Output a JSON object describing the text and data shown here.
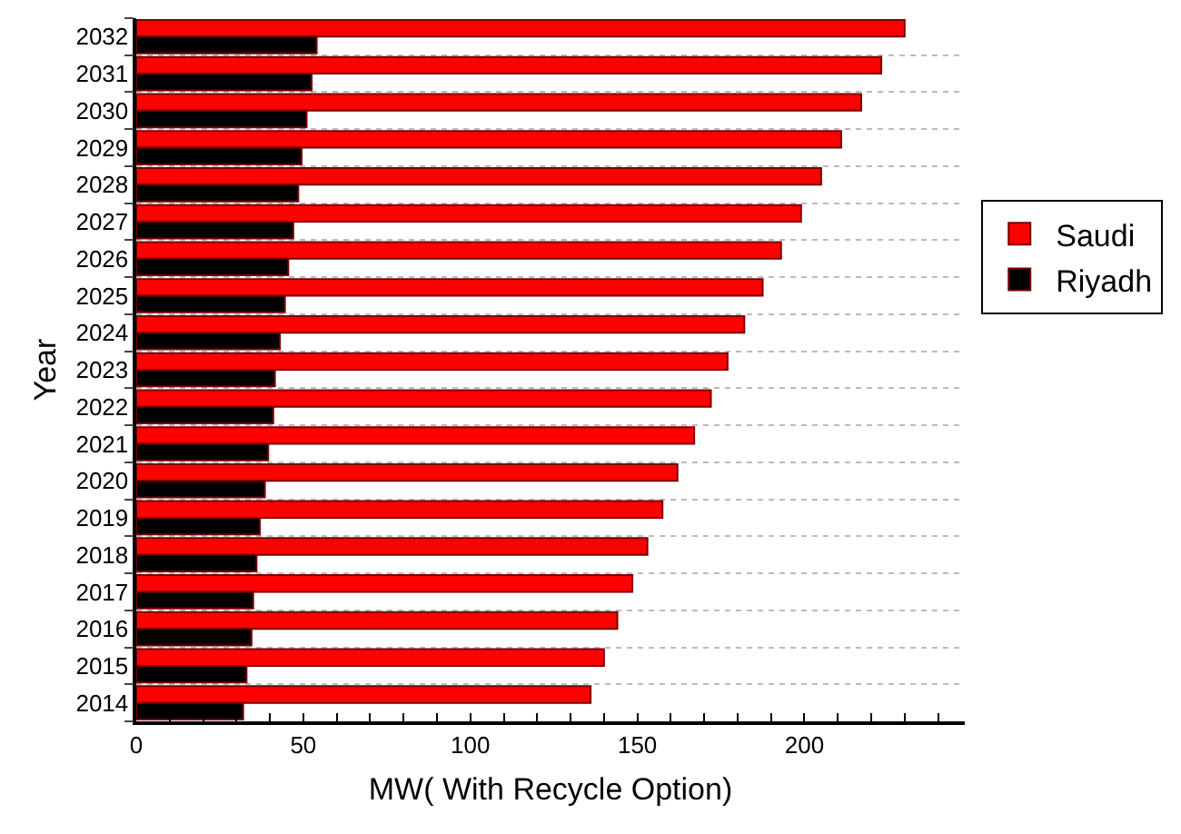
{
  "chart_data": {
    "type": "bar",
    "orientation": "horizontal",
    "xlabel": "MW( With Recycle Option)",
    "ylabel": "Year",
    "categories": [
      "2032",
      "2031",
      "2030",
      "2029",
      "2028",
      "2027",
      "2026",
      "2025",
      "2024",
      "2023",
      "2022",
      "2021",
      "2020",
      "2019",
      "2018",
      "2017",
      "2016",
      "2015",
      "2014"
    ],
    "series": [
      {
        "name": "Saudi",
        "color": "#ff0000",
        "values": [
          230,
          223,
          217,
          211,
          205,
          199,
          193,
          187.5,
          182,
          177,
          172,
          167,
          162,
          157.5,
          153,
          148.5,
          144,
          140,
          136
        ]
      },
      {
        "name": "Riyadh",
        "color": "#000000",
        "values": [
          54,
          52.5,
          51,
          49.5,
          48.5,
          47,
          45.5,
          44.5,
          43,
          41.5,
          41,
          39.5,
          38.5,
          37,
          36,
          35,
          34.5,
          33,
          32
        ]
      }
    ],
    "xlim": [
      0,
      248
    ],
    "xticks": [
      0,
      {
        "value": 10,
        "label": null
      },
      {
        "value": 20,
        "label": null
      },
      {
        "value": 30,
        "label": null
      },
      {
        "value": 40,
        "label": null
      },
      50,
      {
        "value": 60,
        "label": null
      },
      {
        "value": 70,
        "label": null
      },
      {
        "value": 80,
        "label": null
      },
      {
        "value": 90,
        "label": null
      },
      100,
      {
        "value": 110,
        "label": null
      },
      {
        "value": 120,
        "label": null
      },
      {
        "value": 130,
        "label": null
      },
      {
        "value": 140,
        "label": null
      },
      150,
      {
        "value": 160,
        "label": null
      },
      {
        "value": 170,
        "label": null
      },
      {
        "value": 180,
        "label": null
      },
      {
        "value": 190,
        "label": null
      },
      200,
      {
        "value": 210,
        "label": null
      },
      {
        "value": 220,
        "label": null
      },
      {
        "value": 230,
        "label": null
      },
      {
        "value": 240,
        "label": null
      }
    ],
    "grid": "y",
    "legend": "right"
  }
}
